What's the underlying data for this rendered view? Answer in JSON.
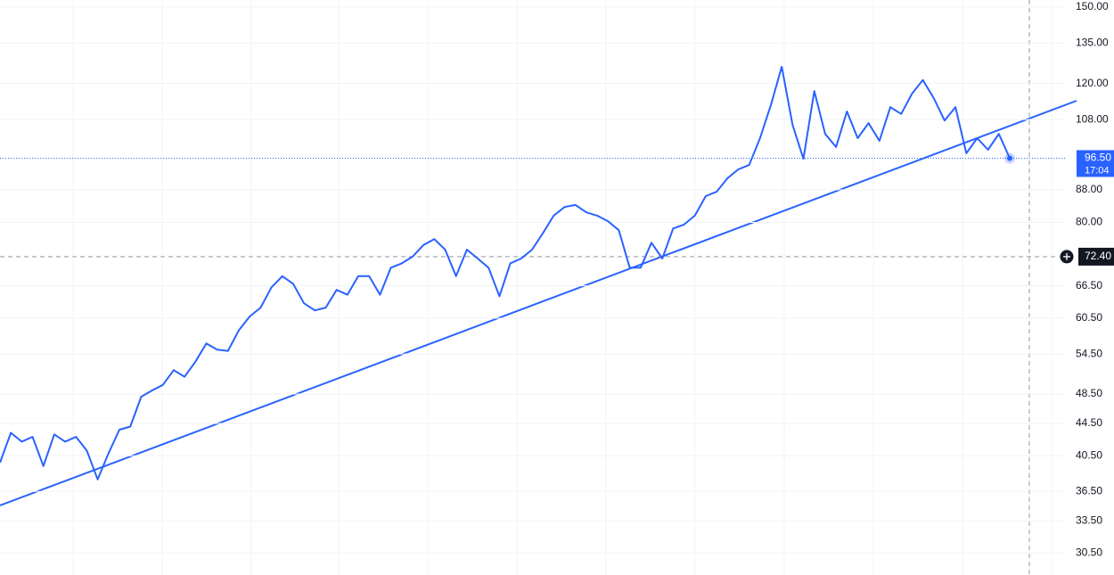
{
  "chart_data": {
    "type": "line",
    "log_scale": true,
    "grid": true,
    "series": [
      {
        "color": "#2962ff",
        "values": [
          39.7,
          43.3,
          42.2,
          42.8,
          39.3,
          43.1,
          42.2,
          42.8,
          41.1,
          37.8,
          40.8,
          43.7,
          44.1,
          48.1,
          49.0,
          49.8,
          52.0,
          51.0,
          53.3,
          56.2,
          55.2,
          55.0,
          58.4,
          60.8,
          62.4,
          66.2,
          68.4,
          66.9,
          63.2,
          61.9,
          62.4,
          65.7,
          64.8,
          68.4,
          68.4,
          64.8,
          70.1,
          71.0,
          72.4,
          74.9,
          76.2,
          73.9,
          68.4,
          73.9,
          72.0,
          70.1,
          64.5,
          71.0,
          72.0,
          73.9,
          77.5,
          81.6,
          83.7,
          84.2,
          82.4,
          81.6,
          80.3,
          78.2,
          70.1,
          70.1,
          75.4,
          72.0,
          78.6,
          79.5,
          81.6,
          86.4,
          87.5,
          91.0,
          93.4,
          94.6,
          102.3,
          112.7,
          126.0,
          106.4,
          96.3,
          117.4,
          103.6,
          99.7,
          110.6,
          102.3,
          106.9,
          101.5,
          112.0,
          109.8,
          116.5,
          121.2,
          115.0,
          107.7,
          112.0,
          97.9,
          102.3,
          98.9,
          103.6,
          96.5
        ]
      }
    ],
    "ylim": [
      28.6,
      153.1
    ],
    "yticks": [
      {
        "value": 150,
        "label": "150.00"
      },
      {
        "value": 135,
        "label": "135.00"
      },
      {
        "value": 120,
        "label": "120.00"
      },
      {
        "value": 108,
        "label": "108.00"
      },
      {
        "value": 88,
        "label": "88.00"
      },
      {
        "value": 80,
        "label": "80.00"
      },
      {
        "value": 66.5,
        "label": "66.50"
      },
      {
        "value": 60.5,
        "label": "60.50"
      },
      {
        "value": 54.5,
        "label": "54.50"
      },
      {
        "value": 48.5,
        "label": "48.50"
      },
      {
        "value": 44.5,
        "label": "44.50"
      },
      {
        "value": 40.5,
        "label": "40.50"
      },
      {
        "value": 36.5,
        "label": "36.50"
      },
      {
        "value": 33.5,
        "label": "33.50"
      },
      {
        "value": 30.5,
        "label": "30.50"
      }
    ],
    "last_price": {
      "value": 96.5,
      "label": "96.50"
    },
    "countdown": "17:04",
    "crosshair": {
      "value": 72.4,
      "label": "72.40"
    }
  }
}
